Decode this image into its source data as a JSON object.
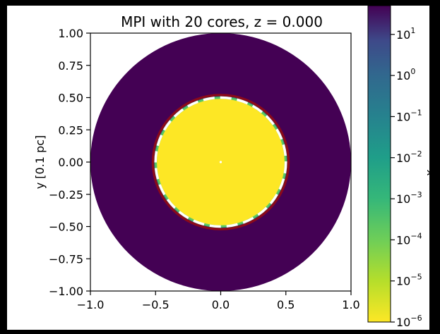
{
  "chart_data": {
    "type": "heatmap",
    "title": "MPI with 20 cores, z = 0.000",
    "xlabel": "",
    "ylabel": "y [0.1 pc]",
    "xlim": [
      -1.0,
      1.0
    ],
    "ylim": [
      -1.0,
      1.0
    ],
    "xticks": [
      "−1.0",
      "−0.5",
      "0.0",
      "0.5",
      "1.0"
    ],
    "xtick_values": [
      -1.0,
      -0.5,
      0.0,
      0.5,
      1.0
    ],
    "yticks": [
      "1.00",
      "0.75",
      "0.50",
      "0.25",
      "0.00",
      "−0.25",
      "−0.50",
      "−0.75",
      "−1.00"
    ],
    "ytick_values": [
      1.0,
      0.75,
      0.5,
      0.25,
      0.0,
      -0.25,
      -0.5,
      -0.75,
      -1.0
    ],
    "domain_radius": 1.0,
    "ionized_region_radius": 0.49,
    "transition_radius": 0.52,
    "reference_circles": [
      {
        "radius": 0.52,
        "style": "solid",
        "color": "#8b0a1a"
      },
      {
        "radius": 0.5,
        "style": "dashed",
        "color": "#ffffff"
      }
    ],
    "colorscale": {
      "name": "viridis",
      "scale": "log",
      "label": "x_HI",
      "min_exp": -6,
      "max_exp": 1.7,
      "ticks": [
        {
          "base": "10",
          "exp": "1",
          "value": 10
        },
        {
          "base": "10",
          "exp": "0",
          "value": 1
        },
        {
          "base": "10",
          "exp": "−1",
          "value": 0.1
        },
        {
          "base": "10",
          "exp": "−2",
          "value": 0.01
        },
        {
          "base": "10",
          "exp": "−3",
          "value": 0.001
        },
        {
          "base": "10",
          "exp": "−4",
          "value": 0.0001
        },
        {
          "base": "10",
          "exp": "−5",
          "value": 1e-05
        },
        {
          "base": "10",
          "exp": "−6",
          "value": 1e-06
        }
      ]
    },
    "colors": {
      "inner": "#fde725",
      "outer": "#440154",
      "transition_a": "#21918c",
      "transition_b": "#5ec962"
    }
  }
}
